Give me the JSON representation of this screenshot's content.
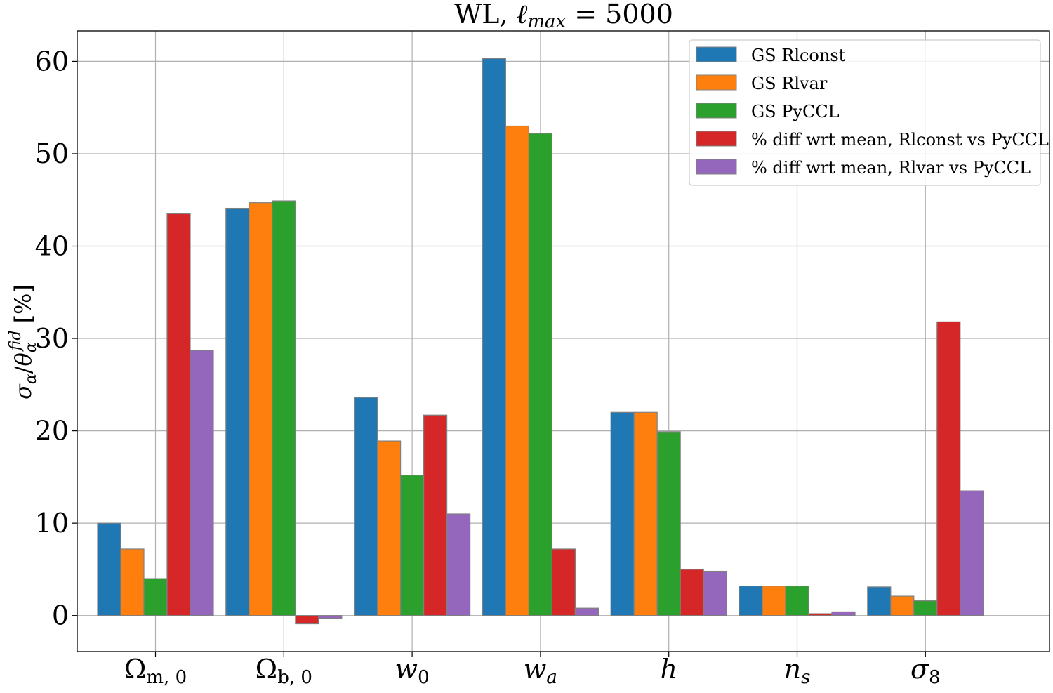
{
  "chart_data": {
    "type": "bar",
    "title": "WL, ℓmax = 5000",
    "title_main": "WL, ",
    "title_ell": "ℓ",
    "title_sub": "max",
    "title_val": " = 5000",
    "ylabel": "σα/θαfid [%]",
    "categories": [
      "Ωm,0",
      "Ωb,0",
      "w0",
      "wa",
      "h",
      "ns",
      "σ8"
    ],
    "category_parts": [
      {
        "base": "Ω",
        "sub": "m, 0",
        "italic": false
      },
      {
        "base": "Ω",
        "sub": "b, 0",
        "italic": false
      },
      {
        "base": "w",
        "sub": "0",
        "italic": true
      },
      {
        "base": "w",
        "sub": "a",
        "italic": true
      },
      {
        "base": "h",
        "sub": "",
        "italic": true
      },
      {
        "base": "n",
        "sub": "s",
        "italic": true
      },
      {
        "base": "σ",
        "sub": "8",
        "italic": true
      }
    ],
    "ylim": [
      -3.9,
      63.3
    ],
    "yticks": [
      0,
      10,
      20,
      30,
      40,
      50,
      60
    ],
    "grid": true,
    "legend_position": "top-right",
    "series": [
      {
        "name": "GS Rlconst",
        "color": "#1f77b4",
        "values": [
          10.0,
          44.1,
          23.6,
          60.3,
          22.0,
          3.2,
          3.1
        ]
      },
      {
        "name": "GS Rlvar",
        "color": "#ff7f0e",
        "values": [
          7.2,
          44.7,
          18.9,
          53.0,
          22.0,
          3.2,
          2.1
        ]
      },
      {
        "name": "GS PyCCL",
        "color": "#2ca02c",
        "values": [
          4.0,
          44.9,
          15.2,
          52.2,
          19.9,
          3.2,
          1.6
        ]
      },
      {
        "name": "% diff wrt mean, Rlconst vs PyCCL",
        "color": "#d62728",
        "values": [
          43.5,
          -0.9,
          21.7,
          7.2,
          5.0,
          0.2,
          31.8
        ]
      },
      {
        "name": "% diff wrt mean, Rlvar vs PyCCL",
        "color": "#9467bd",
        "values": [
          28.7,
          -0.3,
          11.0,
          0.8,
          4.8,
          0.4,
          13.5
        ]
      }
    ]
  }
}
